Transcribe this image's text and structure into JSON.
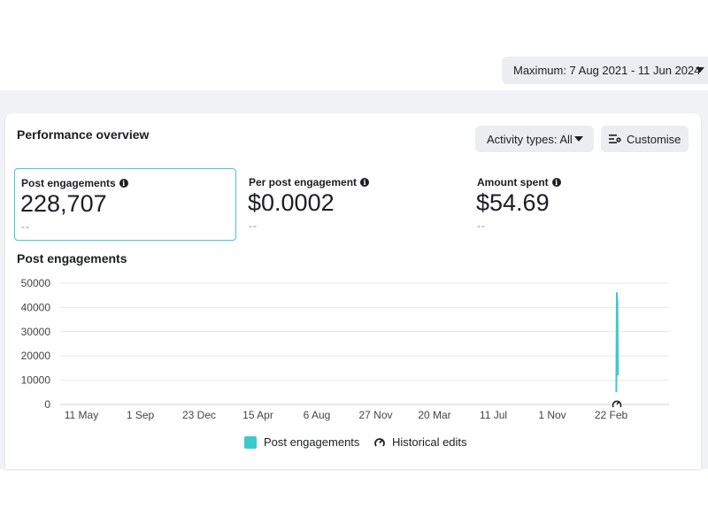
{
  "header": {
    "date_range": "Maximum: 7 Aug 2021 - 11 Jun 2024"
  },
  "overview": {
    "title": "Performance overview",
    "activity_label": "Activity types: All",
    "customise_label": "Customise"
  },
  "metrics": [
    {
      "label": "Post engagements",
      "value": "228,707",
      "comparison": "--",
      "selected": true
    },
    {
      "label": "Per post engagement",
      "value": "$0.0002",
      "comparison": "--",
      "selected": false
    },
    {
      "label": "Amount spent",
      "value": "$54.69",
      "comparison": "--",
      "selected": false
    }
  ],
  "chart_title": "Post engagements",
  "legend": {
    "series_label": "Post engagements",
    "edits_label": "Historical edits"
  },
  "colors": {
    "series": "#3cc9c9",
    "selected_border": "#47c7d6",
    "button_bg": "#ebedf0",
    "page_bg": "#f0f2f5"
  },
  "chart_data": {
    "type": "line",
    "title": "Post engagements",
    "xlabel": "",
    "ylabel": "",
    "x_tick_labels": [
      "11 May",
      "1 Sep",
      "23 Dec",
      "15 Apr",
      "6 Aug",
      "27 Nov",
      "20 Mar",
      "11 Jul",
      "1 Nov",
      "22 Feb"
    ],
    "y_ticks": [
      0,
      10000,
      20000,
      30000,
      40000,
      50000
    ],
    "ylim": [
      0,
      50000
    ],
    "xlim": [
      "2021-08-07",
      "2024-06-11"
    ],
    "grid": true,
    "legend_position": "bottom",
    "series": [
      {
        "name": "Post engagements",
        "points": [
          {
            "x": "2024-02-23",
            "y": 5000
          },
          {
            "x": "2024-02-24",
            "y": 46000
          },
          {
            "x": "2024-02-25",
            "y": 43000
          },
          {
            "x": "2024-02-26",
            "y": 12000
          }
        ]
      }
    ],
    "annotations": [
      {
        "type": "historical-edit",
        "x": "2024-02-24"
      }
    ]
  }
}
